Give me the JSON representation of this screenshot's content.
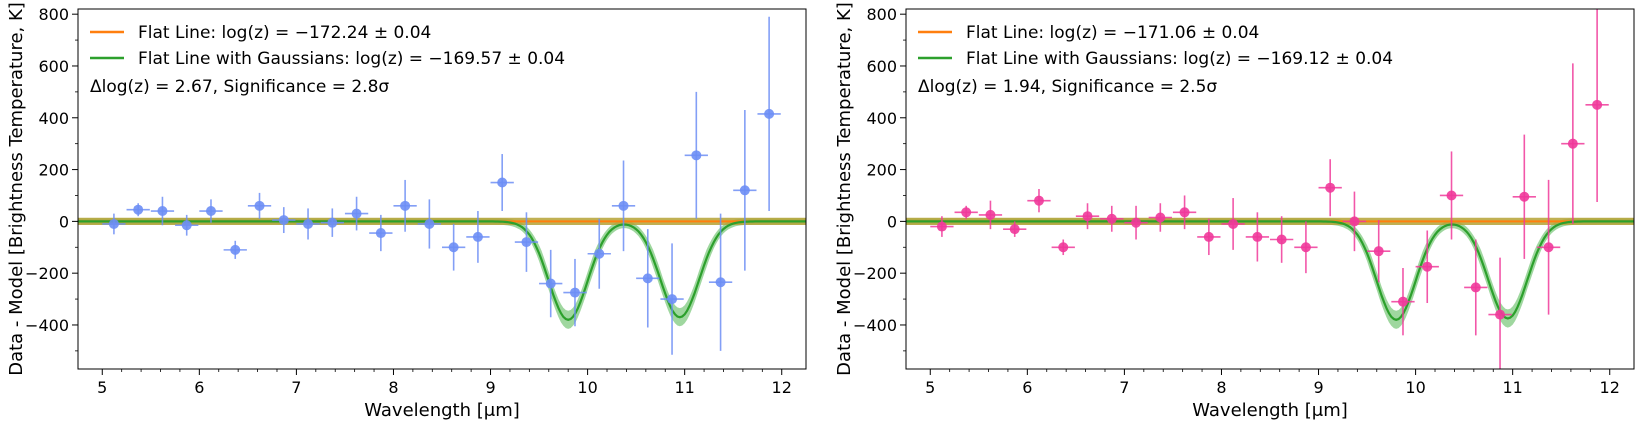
{
  "chart_data": [
    {
      "type": "scatter",
      "panel": "left",
      "xlabel": "Wavelength [μm]",
      "ylabel": "Data - Model [Brightness Temperature, K]",
      "xlim": [
        4.75,
        12.25
      ],
      "ylim": [
        -570,
        820
      ],
      "xticks": [
        5,
        6,
        7,
        8,
        9,
        10,
        11,
        12
      ],
      "yticks": [
        -400,
        -200,
        0,
        200,
        400,
        600,
        800
      ],
      "grid": false,
      "legend_position": "top-left",
      "legend": {
        "flat_label": "Flat Line: log(z) = −172.24 ± 0.04",
        "gauss_label": "Flat Line with Gaussians: log(z) = −169.57 ± 0.04",
        "significance": "Δlog(z) = 2.67, Significance = 2.8σ"
      },
      "colors": {
        "points": "#6d8ef5",
        "flat": "#ff7f0e",
        "gauss": "#2ca02c",
        "band": "#7fc97f"
      },
      "flat_level": 0,
      "gaussians": [
        {
          "center": 9.8,
          "sigma": 0.2,
          "amp": -380
        },
        {
          "center": 10.95,
          "sigma": 0.2,
          "amp": -370
        }
      ],
      "band_width": 35,
      "points": [
        {
          "x": 5.12,
          "y": -10,
          "xerr": 0.12,
          "yerr": 40
        },
        {
          "x": 5.37,
          "y": 45,
          "xerr": 0.12,
          "yerr": 25
        },
        {
          "x": 5.62,
          "y": 40,
          "xerr": 0.12,
          "yerr": 55
        },
        {
          "x": 5.87,
          "y": -15,
          "xerr": 0.12,
          "yerr": 40
        },
        {
          "x": 6.12,
          "y": 40,
          "xerr": 0.12,
          "yerr": 45
        },
        {
          "x": 6.37,
          "y": -110,
          "xerr": 0.12,
          "yerr": 35
        },
        {
          "x": 6.62,
          "y": 60,
          "xerr": 0.12,
          "yerr": 50
        },
        {
          "x": 6.87,
          "y": 5,
          "xerr": 0.12,
          "yerr": 50
        },
        {
          "x": 7.12,
          "y": -10,
          "xerr": 0.12,
          "yerr": 60
        },
        {
          "x": 7.37,
          "y": -5,
          "xerr": 0.12,
          "yerr": 55
        },
        {
          "x": 7.62,
          "y": 30,
          "xerr": 0.12,
          "yerr": 65
        },
        {
          "x": 7.87,
          "y": -45,
          "xerr": 0.12,
          "yerr": 70
        },
        {
          "x": 8.12,
          "y": 60,
          "xerr": 0.12,
          "yerr": 100
        },
        {
          "x": 8.37,
          "y": -10,
          "xerr": 0.12,
          "yerr": 95
        },
        {
          "x": 8.62,
          "y": -100,
          "xerr": 0.12,
          "yerr": 90
        },
        {
          "x": 8.87,
          "y": -60,
          "xerr": 0.12,
          "yerr": 100
        },
        {
          "x": 9.12,
          "y": 150,
          "xerr": 0.12,
          "yerr": 110
        },
        {
          "x": 9.37,
          "y": -80,
          "xerr": 0.12,
          "yerr": 115
        },
        {
          "x": 9.62,
          "y": -240,
          "xerr": 0.12,
          "yerr": 130
        },
        {
          "x": 9.87,
          "y": -275,
          "xerr": 0.12,
          "yerr": 130
        },
        {
          "x": 10.12,
          "y": -125,
          "xerr": 0.12,
          "yerr": 135
        },
        {
          "x": 10.37,
          "y": 60,
          "xerr": 0.12,
          "yerr": 175
        },
        {
          "x": 10.62,
          "y": -220,
          "xerr": 0.12,
          "yerr": 190
        },
        {
          "x": 10.87,
          "y": -300,
          "xerr": 0.12,
          "yerr": 215
        },
        {
          "x": 11.12,
          "y": 255,
          "xerr": 0.12,
          "yerr": 245
        },
        {
          "x": 11.37,
          "y": -235,
          "xerr": 0.12,
          "yerr": 265
        },
        {
          "x": 11.62,
          "y": 120,
          "xerr": 0.12,
          "yerr": 310
        },
        {
          "x": 11.87,
          "y": 415,
          "xerr": 0.12,
          "yerr": 375
        }
      ]
    },
    {
      "type": "scatter",
      "panel": "right",
      "xlabel": "Wavelength [μm]",
      "ylabel": "Data - Model [Brightness Temperature, K]",
      "xlim": [
        4.75,
        12.25
      ],
      "ylim": [
        -570,
        820
      ],
      "xticks": [
        5,
        6,
        7,
        8,
        9,
        10,
        11,
        12
      ],
      "yticks": [
        -400,
        -200,
        0,
        200,
        400,
        600,
        800
      ],
      "grid": false,
      "legend_position": "top-left",
      "legend": {
        "flat_label": "Flat Line: log(z) = −171.06 ± 0.04",
        "gauss_label": "Flat Line with Gaussians: log(z) = −169.12 ± 0.04",
        "significance": "Δlog(z) = 1.94, Significance = 2.5σ"
      },
      "colors": {
        "points": "#f0399a",
        "flat": "#ff7f0e",
        "gauss": "#2ca02c",
        "band": "#7fc97f"
      },
      "flat_level": 0,
      "gaussians": [
        {
          "center": 9.8,
          "sigma": 0.2,
          "amp": -380
        },
        {
          "center": 10.95,
          "sigma": 0.2,
          "amp": -375
        }
      ],
      "band_width": 35,
      "points": [
        {
          "x": 5.12,
          "y": -20,
          "xerr": 0.12,
          "yerr": 40
        },
        {
          "x": 5.37,
          "y": 35,
          "xerr": 0.12,
          "yerr": 25
        },
        {
          "x": 5.62,
          "y": 25,
          "xerr": 0.12,
          "yerr": 55
        },
        {
          "x": 5.87,
          "y": -30,
          "xerr": 0.12,
          "yerr": 30
        },
        {
          "x": 6.12,
          "y": 80,
          "xerr": 0.12,
          "yerr": 45
        },
        {
          "x": 6.37,
          "y": -100,
          "xerr": 0.12,
          "yerr": 30
        },
        {
          "x": 6.62,
          "y": 20,
          "xerr": 0.12,
          "yerr": 50
        },
        {
          "x": 6.87,
          "y": 10,
          "xerr": 0.12,
          "yerr": 50
        },
        {
          "x": 7.12,
          "y": -5,
          "xerr": 0.12,
          "yerr": 65
        },
        {
          "x": 7.37,
          "y": 15,
          "xerr": 0.12,
          "yerr": 55
        },
        {
          "x": 7.62,
          "y": 35,
          "xerr": 0.12,
          "yerr": 65
        },
        {
          "x": 7.87,
          "y": -60,
          "xerr": 0.12,
          "yerr": 70
        },
        {
          "x": 8.12,
          "y": -10,
          "xerr": 0.12,
          "yerr": 100
        },
        {
          "x": 8.37,
          "y": -60,
          "xerr": 0.12,
          "yerr": 95
        },
        {
          "x": 8.62,
          "y": -70,
          "xerr": 0.12,
          "yerr": 90
        },
        {
          "x": 8.87,
          "y": -100,
          "xerr": 0.12,
          "yerr": 100
        },
        {
          "x": 9.12,
          "y": 130,
          "xerr": 0.12,
          "yerr": 110
        },
        {
          "x": 9.37,
          "y": 0,
          "xerr": 0.12,
          "yerr": 115
        },
        {
          "x": 9.62,
          "y": -115,
          "xerr": 0.12,
          "yerr": 120
        },
        {
          "x": 9.87,
          "y": -310,
          "xerr": 0.12,
          "yerr": 130
        },
        {
          "x": 10.12,
          "y": -175,
          "xerr": 0.12,
          "yerr": 140
        },
        {
          "x": 10.37,
          "y": 100,
          "xerr": 0.12,
          "yerr": 170
        },
        {
          "x": 10.62,
          "y": -255,
          "xerr": 0.12,
          "yerr": 185
        },
        {
          "x": 10.87,
          "y": -360,
          "xerr": 0.12,
          "yerr": 220
        },
        {
          "x": 11.12,
          "y": 95,
          "xerr": 0.12,
          "yerr": 240
        },
        {
          "x": 11.37,
          "y": -100,
          "xerr": 0.12,
          "yerr": 260
        },
        {
          "x": 11.62,
          "y": 300,
          "xerr": 0.12,
          "yerr": 310
        },
        {
          "x": 11.87,
          "y": 450,
          "xerr": 0.12,
          "yerr": 375
        }
      ]
    }
  ]
}
